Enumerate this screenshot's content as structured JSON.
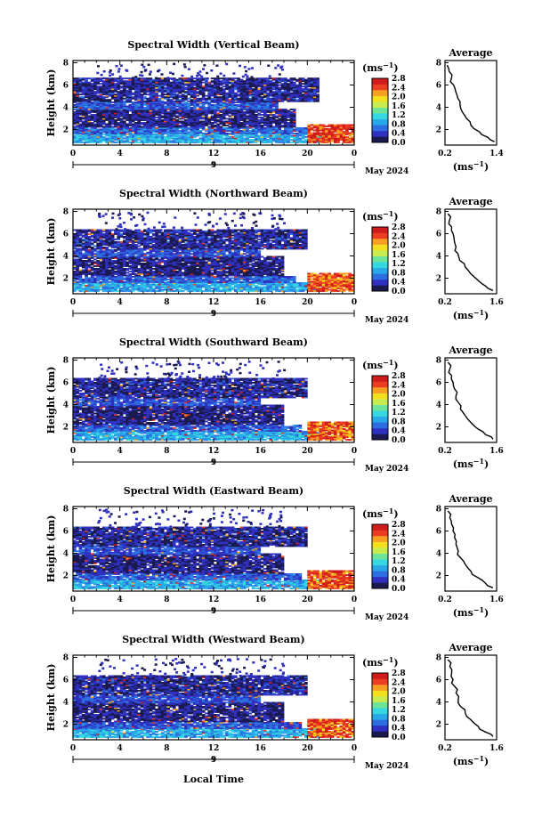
{
  "figure": {
    "date_label": "May 2024",
    "day_label": "9",
    "xlabel_bottom": "Local Time"
  },
  "colorbar": {
    "unit": "(ms",
    "unit_exp": "−1",
    "unit_close": ")",
    "range": [
      0.0,
      2.8
    ],
    "ticks": [
      "2.8",
      "2.4",
      "2.0",
      "1.6",
      "1.2",
      "0.8",
      "0.4",
      "0.0"
    ],
    "colors": [
      "#1a1a4e",
      "#3030c0",
      "#2d6fe0",
      "#29a8e8",
      "#35d8e0",
      "#6ee39a",
      "#c8ec50",
      "#f2e01c",
      "#f5a021",
      "#ec3c22",
      "#d11c1c"
    ]
  },
  "chart_data": [
    {
      "type": "heatmap",
      "title": "Spectral Width (Vertical Beam)",
      "ylabel": "Height (km)",
      "x_ticks": [
        "0",
        "4",
        "8",
        "12",
        "16",
        "20",
        "0"
      ],
      "xlim": [
        0,
        24
      ],
      "y_ticks": [
        "2",
        "4",
        "6",
        "8"
      ],
      "ylim": [
        0.6,
        8.2
      ],
      "layers": [
        {
          "t0": 0,
          "t1": 21.5,
          "h0": 0.8,
          "h1": 1.6,
          "v": 0.9
        },
        {
          "t0": 0,
          "t1": 20.0,
          "h0": 1.6,
          "h1": 2.2,
          "v": 0.6
        },
        {
          "t0": 0,
          "t1": 19.0,
          "h0": 2.2,
          "h1": 3.8,
          "v": 0.25
        },
        {
          "t0": 0,
          "t1": 17.5,
          "h0": 3.8,
          "h1": 4.5,
          "v": 0.55
        },
        {
          "t0": 0,
          "t1": 21.0,
          "h0": 4.5,
          "h1": 6.6,
          "v": 0.3
        },
        {
          "t0": 20.0,
          "t1": 24.0,
          "h0": 0.8,
          "h1": 2.4,
          "v": 2.5
        }
      ],
      "avg": {
        "title": "Average",
        "xlabel": "(ms",
        "xlabel_exp": "−1",
        "xlabel_close": ")",
        "x_ticks": [
          "0.2",
          "1.4"
        ],
        "xlim": [
          0.2,
          1.4
        ],
        "y_ticks": [
          "2",
          "4",
          "6",
          "8"
        ],
        "ylim": [
          0.6,
          8.2
        ],
        "x": [
          1.35,
          1.2,
          1.0,
          0.8,
          0.7,
          0.6,
          0.55,
          0.5,
          0.45,
          0.4,
          0.35,
          0.3,
          0.25
        ],
        "y": [
          0.9,
          1.3,
          1.8,
          2.4,
          3.0,
          3.6,
          4.2,
          4.8,
          5.4,
          6.0,
          6.6,
          7.2,
          7.8
        ]
      }
    },
    {
      "type": "heatmap",
      "title": "Spectral Width (Northward Beam)",
      "ylabel": "Height (km)",
      "x_ticks": [
        "0",
        "4",
        "8",
        "12",
        "16",
        "20",
        "0"
      ],
      "xlim": [
        0,
        24
      ],
      "y_ticks": [
        "2",
        "4",
        "6",
        "8"
      ],
      "ylim": [
        0.6,
        8.2
      ],
      "layers": [
        {
          "t0": 0,
          "t1": 21.0,
          "h0": 0.8,
          "h1": 1.6,
          "v": 0.9
        },
        {
          "t0": 0,
          "t1": 19.0,
          "h0": 1.6,
          "h1": 2.2,
          "v": 0.55
        },
        {
          "t0": 0,
          "t1": 18.0,
          "h0": 2.2,
          "h1": 3.9,
          "v": 0.25
        },
        {
          "t0": 0,
          "t1": 16.0,
          "h0": 3.9,
          "h1": 4.6,
          "v": 0.5
        },
        {
          "t0": 0,
          "t1": 20.0,
          "h0": 4.6,
          "h1": 6.4,
          "v": 0.3
        },
        {
          "t0": 20.0,
          "t1": 24.0,
          "h0": 0.8,
          "h1": 2.4,
          "v": 2.4
        }
      ],
      "avg": {
        "title": "Average",
        "xlabel": "(ms",
        "xlabel_exp": "−1",
        "xlabel_close": ")",
        "x_ticks": [
          "0.2",
          "1.6"
        ],
        "xlim": [
          0.2,
          1.6
        ],
        "y_ticks": [
          "2",
          "4",
          "6",
          "8"
        ],
        "ylim": [
          0.6,
          8.2
        ],
        "x": [
          1.5,
          1.3,
          1.1,
          0.9,
          0.75,
          0.6,
          0.55,
          0.5,
          0.45,
          0.42,
          0.38,
          0.32,
          0.28
        ],
        "y": [
          0.9,
          1.3,
          1.8,
          2.4,
          3.0,
          3.6,
          4.2,
          4.8,
          5.4,
          6.0,
          6.6,
          7.2,
          7.8
        ]
      }
    },
    {
      "type": "heatmap",
      "title": "Spectral Width (Southward Beam)",
      "ylabel": "Height (km)",
      "x_ticks": [
        "0",
        "4",
        "8",
        "12",
        "16",
        "20",
        "0"
      ],
      "xlim": [
        0,
        24
      ],
      "y_ticks": [
        "2",
        "4",
        "6",
        "8"
      ],
      "ylim": [
        0.6,
        8.2
      ],
      "layers": [
        {
          "t0": 0,
          "t1": 21.0,
          "h0": 0.8,
          "h1": 1.6,
          "v": 0.9
        },
        {
          "t0": 0,
          "t1": 19.5,
          "h0": 1.6,
          "h1": 2.2,
          "v": 0.55
        },
        {
          "t0": 0,
          "t1": 18.0,
          "h0": 2.2,
          "h1": 3.9,
          "v": 0.25
        },
        {
          "t0": 0,
          "t1": 16.0,
          "h0": 3.9,
          "h1": 4.6,
          "v": 0.5
        },
        {
          "t0": 0,
          "t1": 20.0,
          "h0": 4.6,
          "h1": 6.4,
          "v": 0.3
        },
        {
          "t0": 20.0,
          "t1": 24.0,
          "h0": 0.8,
          "h1": 2.4,
          "v": 2.4
        }
      ],
      "avg": {
        "title": "Average",
        "xlabel": "(ms",
        "xlabel_exp": "−1",
        "xlabel_close": ")",
        "x_ticks": [
          "0.2",
          "1.6"
        ],
        "xlim": [
          0.2,
          1.6
        ],
        "y_ticks": [
          "2",
          "4",
          "6",
          "8"
        ],
        "ylim": [
          0.6,
          8.2
        ],
        "x": [
          1.5,
          1.3,
          1.1,
          0.9,
          0.75,
          0.62,
          0.56,
          0.5,
          0.46,
          0.42,
          0.38,
          0.33,
          0.28
        ],
        "y": [
          0.9,
          1.3,
          1.8,
          2.4,
          3.0,
          3.6,
          4.2,
          4.8,
          5.4,
          6.0,
          6.6,
          7.2,
          7.8
        ]
      }
    },
    {
      "type": "heatmap",
      "title": "Spectral Width (Eastward Beam)",
      "ylabel": "Height (km)",
      "x_ticks": [
        "0",
        "4",
        "8",
        "12",
        "16",
        "20",
        "0"
      ],
      "xlim": [
        0,
        24
      ],
      "y_ticks": [
        "2",
        "4",
        "6",
        "8"
      ],
      "ylim": [
        0.6,
        8.2
      ],
      "layers": [
        {
          "t0": 0,
          "t1": 21.0,
          "h0": 0.8,
          "h1": 1.6,
          "v": 0.9
        },
        {
          "t0": 0,
          "t1": 19.5,
          "h0": 1.6,
          "h1": 2.2,
          "v": 0.55
        },
        {
          "t0": 0,
          "t1": 18.0,
          "h0": 2.2,
          "h1": 3.9,
          "v": 0.25
        },
        {
          "t0": 0,
          "t1": 16.0,
          "h0": 3.9,
          "h1": 4.6,
          "v": 0.5
        },
        {
          "t0": 0,
          "t1": 20.0,
          "h0": 4.6,
          "h1": 6.4,
          "v": 0.3
        },
        {
          "t0": 20.0,
          "t1": 24.0,
          "h0": 0.8,
          "h1": 2.4,
          "v": 2.4
        }
      ],
      "avg": {
        "title": "Average",
        "xlabel": "(ms",
        "xlabel_exp": "−1",
        "xlabel_close": ")",
        "x_ticks": [
          "0.2",
          "1.6"
        ],
        "xlim": [
          0.2,
          1.6
        ],
        "y_ticks": [
          "2",
          "4",
          "6",
          "8"
        ],
        "ylim": [
          0.6,
          8.2
        ],
        "x": [
          1.5,
          1.3,
          1.1,
          0.9,
          0.75,
          0.62,
          0.56,
          0.5,
          0.46,
          0.42,
          0.38,
          0.33,
          0.28
        ],
        "y": [
          0.9,
          1.3,
          1.8,
          2.4,
          3.0,
          3.6,
          4.2,
          4.8,
          5.4,
          6.0,
          6.6,
          7.2,
          7.8
        ]
      }
    },
    {
      "type": "heatmap",
      "title": "Spectral Width (Westward Beam)",
      "ylabel": "Height (km)",
      "x_ticks": [
        "0",
        "4",
        "8",
        "12",
        "16",
        "20",
        "0"
      ],
      "xlim": [
        0,
        24
      ],
      "y_ticks": [
        "2",
        "4",
        "6",
        "8"
      ],
      "ylim": [
        0.6,
        8.2
      ],
      "layers": [
        {
          "t0": 0,
          "t1": 21.0,
          "h0": 0.8,
          "h1": 1.6,
          "v": 0.9
        },
        {
          "t0": 0,
          "t1": 19.5,
          "h0": 1.6,
          "h1": 2.2,
          "v": 0.55
        },
        {
          "t0": 0,
          "t1": 18.0,
          "h0": 2.2,
          "h1": 3.9,
          "v": 0.25
        },
        {
          "t0": 0,
          "t1": 16.0,
          "h0": 3.9,
          "h1": 4.6,
          "v": 0.5
        },
        {
          "t0": 0,
          "t1": 20.0,
          "h0": 4.6,
          "h1": 6.4,
          "v": 0.3
        },
        {
          "t0": 20.0,
          "t1": 24.0,
          "h0": 0.8,
          "h1": 2.4,
          "v": 2.4
        }
      ],
      "avg": {
        "title": "Average",
        "xlabel": "(ms",
        "xlabel_exp": "−1",
        "xlabel_close": ")",
        "x_ticks": [
          "0.2",
          "1.6"
        ],
        "xlim": [
          0.2,
          1.6
        ],
        "y_ticks": [
          "2",
          "4",
          "6",
          "8"
        ],
        "ylim": [
          0.6,
          8.2
        ],
        "x": [
          1.5,
          1.3,
          1.1,
          0.9,
          0.75,
          0.62,
          0.56,
          0.5,
          0.46,
          0.42,
          0.38,
          0.33,
          0.28
        ],
        "y": [
          0.9,
          1.3,
          1.8,
          2.4,
          3.0,
          3.6,
          4.2,
          4.8,
          5.4,
          6.0,
          6.6,
          7.2,
          7.8
        ]
      }
    }
  ]
}
